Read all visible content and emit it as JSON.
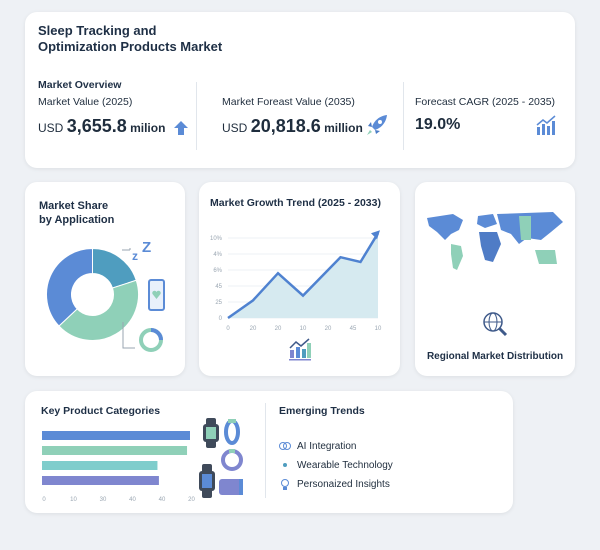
{
  "title_lines": [
    "Sleep Tracking and",
    "Optimization Products Market"
  ],
  "overview": {
    "heading": "Market Overview",
    "metrics": [
      {
        "label": "Market Value (2025)",
        "prefix": "USD",
        "value": "3,655.8",
        "suffix": "milion",
        "icon": "arrow-up-icon"
      },
      {
        "label": "Market Foreast Value (2035)",
        "prefix": "USD",
        "value": "20,818.6",
        "suffix": "million",
        "icon": "rocket-icon"
      },
      {
        "label": "Forecast CAGR (2025 - 2035)",
        "value": "19.0%",
        "icon": "bar-chart-up-icon"
      }
    ]
  },
  "share": {
    "title_lines": [
      "Market Share",
      "by Application"
    ]
  },
  "growth": {
    "title": "Market Growth Trend (2025 - 2033)"
  },
  "regional": {
    "label": "Regional Market Distribution"
  },
  "categories": {
    "title": "Key Product Categories"
  },
  "trends": {
    "title": "Emerging Trends",
    "items": [
      {
        "label": "AI Integration",
        "icon": "brain-icon"
      },
      {
        "label": "Wearable Technology",
        "icon": "dot-icon"
      },
      {
        "label": "Personaized Insights",
        "icon": "lightbulb-icon"
      }
    ]
  },
  "colors": {
    "blue": "#5b8bd6",
    "teal": "#4f9dbf",
    "green": "#8fd0b8",
    "cyan": "#7fcdcc",
    "purple": "#7f86cf",
    "area": "#d6eaf0"
  },
  "chart_data": [
    {
      "type": "pie",
      "donut": true,
      "values": [
        0.2,
        0.43,
        0.37
      ],
      "colors": [
        "#4f9dbf",
        "#8fd0b8",
        "#5b8bd6"
      ]
    },
    {
      "type": "area",
      "title": "Market Growth Trend (2025 - 2033)",
      "x_tick_labels": [
        "0",
        "20",
        "20",
        "10",
        "20",
        "45",
        "10"
      ],
      "y_tick_labels": [
        "0",
        "25",
        "45",
        "6%",
        "4%",
        "10%"
      ],
      "points": [
        [
          0,
          0
        ],
        [
          1,
          1.1
        ],
        [
          2,
          2.8
        ],
        [
          3,
          1.4
        ],
        [
          4.5,
          3.8
        ],
        [
          5.3,
          3.5
        ],
        [
          6,
          5.3
        ]
      ],
      "grid": true
    },
    {
      "type": "bar",
      "orientation": "horizontal",
      "title": "Key Product Categories",
      "values": [
        50,
        49,
        39,
        39.5
      ],
      "colors": [
        "#5b8bd6",
        "#8fd0b8",
        "#7fcdcc",
        "#7f86cf"
      ],
      "x_tick_labels": [
        "0",
        "10",
        "30",
        "40",
        "40",
        "20"
      ],
      "xlim": [
        0,
        50
      ]
    }
  ]
}
